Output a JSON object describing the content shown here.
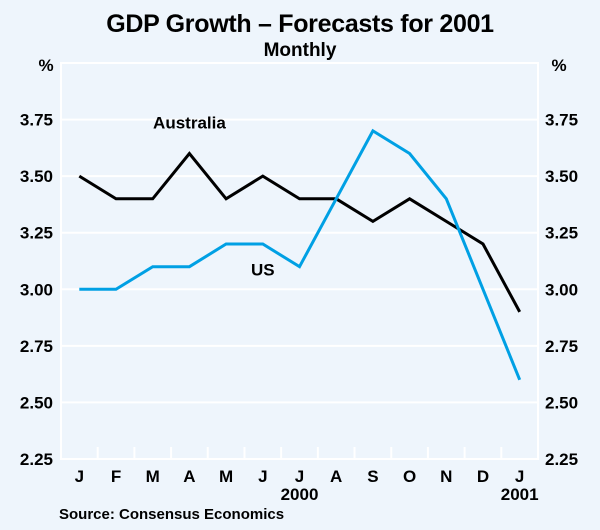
{
  "chart_data": {
    "type": "line",
    "title": "GDP Growth – Forecasts for 2001",
    "subtitle": "Monthly",
    "source": "Source: Consensus Economics",
    "ylabel_left": "%",
    "ylabel_right": "%",
    "ylim": [
      2.25,
      4.0
    ],
    "yticks": [
      2.25,
      2.5,
      2.75,
      3.0,
      3.25,
      3.5,
      3.75
    ],
    "ytick_labels": [
      "2.25",
      "2.50",
      "2.75",
      "3.00",
      "3.25",
      "3.50",
      "3.75"
    ],
    "categories": [
      "J",
      "F",
      "M",
      "A",
      "M",
      "J",
      "J",
      "A",
      "S",
      "O",
      "N",
      "D",
      "J"
    ],
    "year_labels": [
      {
        "label": "2000",
        "category_index": 6
      },
      {
        "label": "2001",
        "category_index": 12
      }
    ],
    "grid": true,
    "series": [
      {
        "name": "Australia",
        "color": "#000000",
        "values": [
          3.5,
          3.4,
          3.4,
          3.6,
          3.4,
          3.5,
          3.4,
          3.4,
          3.3,
          3.4,
          3.3,
          3.2,
          2.9
        ],
        "label_anchor": {
          "category_index": 3,
          "value": 3.71
        }
      },
      {
        "name": "US",
        "color": "#00a0e4",
        "values": [
          3.0,
          3.0,
          3.1,
          3.1,
          3.2,
          3.2,
          3.1,
          3.4,
          3.7,
          3.6,
          3.4,
          3.0,
          2.6
        ],
        "label_anchor": {
          "category_index": 5,
          "value": 3.06
        }
      }
    ]
  }
}
